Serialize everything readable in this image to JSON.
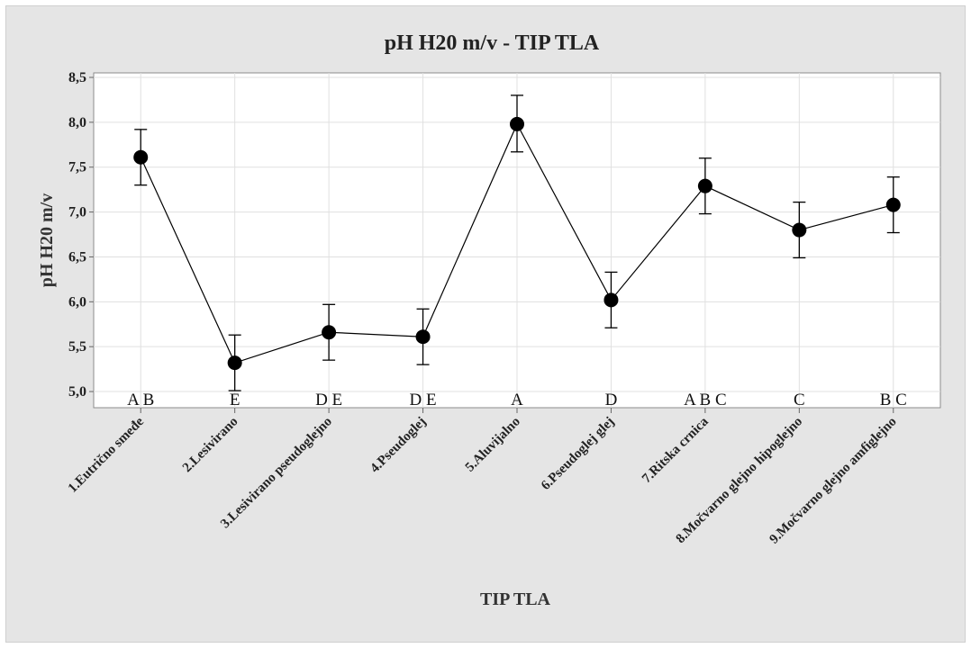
{
  "chart_data": {
    "type": "line",
    "title": "pH H20 m/v - TIP TLA",
    "xlabel": "TIP TLA",
    "ylabel": "pH H20 m/v",
    "categories": [
      "1.Eutrično smeđe",
      "2.Lesivirano",
      "3.Lesivirano pseudoglejno",
      "4.Pseudoglej",
      "5.Aluvijalno",
      "6.Pseudoglej glej",
      "7.Ritska crnica",
      "8.Močvarno glejno hipoglejno",
      "9.Močvarno glejno amfiglejno"
    ],
    "means": [
      7.61,
      5.32,
      5.66,
      5.61,
      7.98,
      6.02,
      7.29,
      6.8,
      7.08
    ],
    "lower": [
      7.3,
      5.01,
      5.35,
      5.3,
      7.67,
      5.71,
      6.98,
      6.49,
      6.77
    ],
    "upper": [
      7.92,
      5.63,
      5.97,
      5.92,
      8.3,
      6.33,
      7.6,
      7.11,
      7.39
    ],
    "groups": [
      "A B",
      "E",
      "D E",
      "D E",
      "A",
      "D",
      "A B C",
      "C",
      "B C"
    ],
    "ylim": [
      4.82,
      8.55
    ],
    "yticks": [
      5.0,
      5.5,
      6.0,
      6.5,
      7.0,
      7.5,
      8.0,
      8.5
    ],
    "ytick_labels": [
      "5,0",
      "5,5",
      "6,0",
      "6,5",
      "7,0",
      "7,5",
      "8,0",
      "8,5"
    ],
    "grid": true,
    "colors": {
      "line": "#000000",
      "marker": "#000000",
      "grid": "#e0e0e0",
      "plot_bg": "#ffffff",
      "frame_bg": "#e5e5e5"
    }
  }
}
